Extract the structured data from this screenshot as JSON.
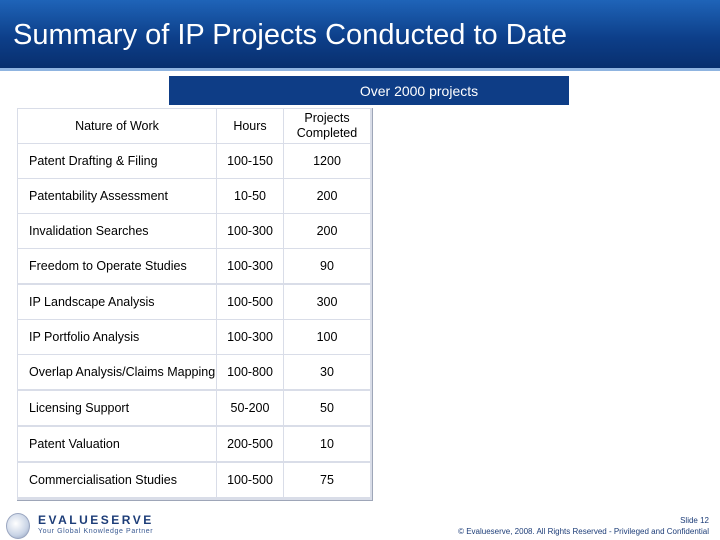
{
  "title": "Summary of IP Projects Conducted to Date",
  "banner": "Over 2000 projects",
  "table": {
    "headers": [
      "Nature of Work",
      "Hours",
      "Projects Completed"
    ],
    "rows": [
      [
        "Patent Drafting & Filing",
        "100-150",
        "1200"
      ],
      [
        "Patentability Assessment",
        "10-50",
        "200"
      ],
      [
        "Invalidation Searches",
        "100-300",
        "200"
      ],
      [
        "Freedom to Operate Studies",
        "100-300",
        "90"
      ],
      [
        "IP Landscape Analysis",
        "100-500",
        "300"
      ],
      [
        "IP Portfolio Analysis",
        "100-300",
        "100"
      ],
      [
        "Overlap Analysis/Claims Mapping",
        "100-800",
        "30"
      ],
      [
        "Licensing Support",
        "50-200",
        "50"
      ],
      [
        "Patent Valuation",
        "200-500",
        "10"
      ],
      [
        "Commercialisation Studies",
        "100-500",
        "75"
      ]
    ]
  },
  "footer": {
    "logo_name": "EVALUESERVE",
    "logo_tagline": "Your Global Knowledge Partner",
    "slide_number": "Slide 12",
    "copyright": "© Evalueserve, 2008. All Rights Reserved - Privileged and Confidential"
  },
  "colors": {
    "title_bar": "#0d3f8a",
    "banner": "#0e3d86",
    "table_grid": "#d9dde8"
  }
}
